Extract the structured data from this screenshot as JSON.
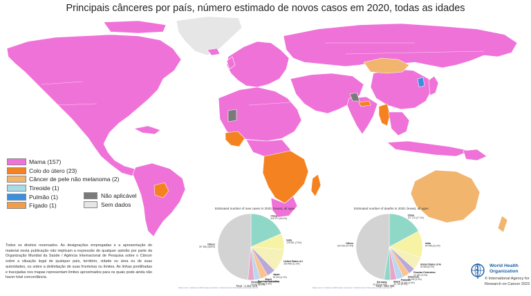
{
  "title": "Principais cânceres por país, número estimado de novos casos em 2020, todas as idades",
  "colors": {
    "mama": "#ef72d8",
    "colo": "#f58220",
    "pele": "#f2b56e",
    "tireoide": "#a9dbe6",
    "pulmao": "#3b8fe0",
    "figado": "#f09e48",
    "na": "#7a7a7a",
    "sem": "#e6e6e6",
    "ocean": "#ffffff",
    "border": "#ffffff"
  },
  "legend": [
    {
      "label": "Mama (157)",
      "color": "#ef72d8"
    },
    {
      "label": "Colo do útero (23)",
      "color": "#f58220"
    },
    {
      "label": "Câncer de pele não melanoma (2)",
      "color": "#f2b56e"
    },
    {
      "label": "Tireoide (1)",
      "color": "#a9dbe6"
    },
    {
      "label": "Pulmão (1)",
      "color": "#3b8fe0"
    },
    {
      "label": "Fígado (1)",
      "color": "#f09e48"
    }
  ],
  "legend2": [
    {
      "label": "Não aplicável",
      "color": "#7a7a7a"
    },
    {
      "label": "Sem dados",
      "color": "#e6e6e6"
    }
  ],
  "disclaimer": "Todos os direitos reservados. As designações empregadas e a apresentação do material nesta publicação não implicam a expressão de qualquer opinião por parte da Organização Mundial da Saúde / Agência Internacional de Pesquisa sobre o Câncer sobre a situação legal de qualquer país, território, cidade ou área ou de suas autoridades, ou sobre a delimitação de suas fronteiras ou limites. As linhas pontilhadas e tracejadas nos mapas representam limites aproximados para os quais pode ainda não haver total concordância.",
  "pie_cases": {
    "title": "Estimated number of new cases in 2020, breast, all ages",
    "total": "Total : 2 261 419",
    "labels": [
      "China",
      "India",
      "United States of America",
      "Japan",
      "Brazil",
      "Russian Federation",
      "Germany",
      "Others"
    ],
    "values": [
      "416 371 (18.4%)",
      "178 361 (7.9%)",
      "253 465 (11.2%)",
      "92 024 (4.1%)",
      "88 492 (3.9%)",
      "65 183 (2.9%)",
      "69 697 (3.1%)",
      "1 097 826 (48.5%)"
    ]
  },
  "pie_deaths": {
    "title": "Estimated number of deaths in 2020, breast, all ages",
    "total": "Total : 684 996",
    "labels": [
      "China",
      "India",
      "United States of America",
      "Russian Federation",
      "Indonesia",
      "Pakistan",
      "Brazil",
      "Germany",
      "Others"
    ],
    "values": [
      "117 174 (17.1%)",
      "90 408 (13.2%)",
      "42 584 (6.2%)",
      "22 180 (3.2%)",
      "22 430 (3.3%)",
      "24 000 (3.5%)",
      "20 725 (3.0%)",
      "20 579 (3.0%)",
      "324 916 (47.4%)"
    ]
  },
  "source_note": "Data source: Globocan 2020 Graph production: Global Cancer Observatory (http://gco.iarc.fr)",
  "who": {
    "line1": "World Health",
    "line2": "Organization",
    "line3": "© International Agency for",
    "line4": "Research on Cancer 2022"
  }
}
